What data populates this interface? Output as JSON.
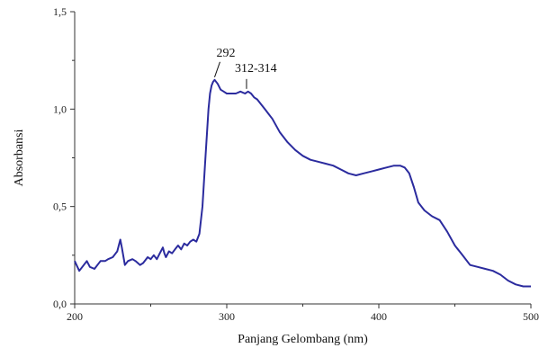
{
  "chart_data": {
    "type": "line",
    "xlabel": "Panjang Gelombang (nm)",
    "ylabel": "Absorbansi",
    "xlim": [
      200,
      500
    ],
    "ylim": [
      0,
      1.5
    ],
    "x_ticks": [
      200,
      300,
      400,
      500
    ],
    "x_tick_labels": [
      "200",
      "300",
      "400",
      "500"
    ],
    "y_ticks": [
      0,
      0.5,
      1.0,
      1.5
    ],
    "y_tick_labels": [
      "0,0",
      "0,5",
      "1,0",
      "1,5"
    ],
    "grid": false,
    "legend": "none",
    "line_color": "#2b2b9e",
    "series": [
      {
        "x": [
          200,
          203,
          205,
          208,
          210,
          213,
          215,
          217,
          220,
          222,
          225,
          228,
          230,
          231,
          233,
          235,
          238,
          240,
          243,
          245,
          248,
          250,
          252,
          254,
          256,
          258,
          259,
          260,
          262,
          264,
          266,
          268,
          270,
          272,
          274,
          276,
          278,
          280,
          282,
          284,
          286,
          288,
          289,
          290,
          291,
          292,
          294,
          296,
          298,
          300,
          303,
          306,
          309,
          312,
          314,
          316,
          318,
          320,
          325,
          330,
          335,
          340,
          345,
          350,
          355,
          360,
          365,
          370,
          375,
          380,
          385,
          390,
          395,
          400,
          405,
          410,
          412,
          414,
          417,
          420,
          423,
          426,
          430,
          435,
          440,
          445,
          450,
          455,
          460,
          465,
          470,
          475,
          480,
          485,
          490,
          495,
          500
        ],
        "y": [
          0.22,
          0.17,
          0.19,
          0.22,
          0.19,
          0.18,
          0.2,
          0.22,
          0.22,
          0.23,
          0.24,
          0.27,
          0.33,
          0.29,
          0.2,
          0.22,
          0.23,
          0.22,
          0.2,
          0.21,
          0.24,
          0.23,
          0.25,
          0.23,
          0.26,
          0.29,
          0.26,
          0.24,
          0.27,
          0.26,
          0.28,
          0.3,
          0.28,
          0.31,
          0.3,
          0.32,
          0.33,
          0.32,
          0.36,
          0.5,
          0.75,
          1.0,
          1.08,
          1.12,
          1.14,
          1.15,
          1.13,
          1.1,
          1.09,
          1.08,
          1.08,
          1.08,
          1.09,
          1.08,
          1.09,
          1.08,
          1.06,
          1.05,
          1.0,
          0.95,
          0.88,
          0.83,
          0.79,
          0.76,
          0.74,
          0.73,
          0.72,
          0.71,
          0.69,
          0.67,
          0.66,
          0.67,
          0.68,
          0.69,
          0.7,
          0.71,
          0.71,
          0.71,
          0.7,
          0.67,
          0.6,
          0.52,
          0.48,
          0.45,
          0.43,
          0.37,
          0.3,
          0.25,
          0.2,
          0.19,
          0.18,
          0.17,
          0.15,
          0.12,
          0.1,
          0.09,
          0.09
        ]
      }
    ],
    "annotations": [
      {
        "text": "292",
        "x": 292,
        "y": 1.15
      },
      {
        "text": "312-314",
        "x": 313,
        "y": 1.09
      }
    ]
  }
}
